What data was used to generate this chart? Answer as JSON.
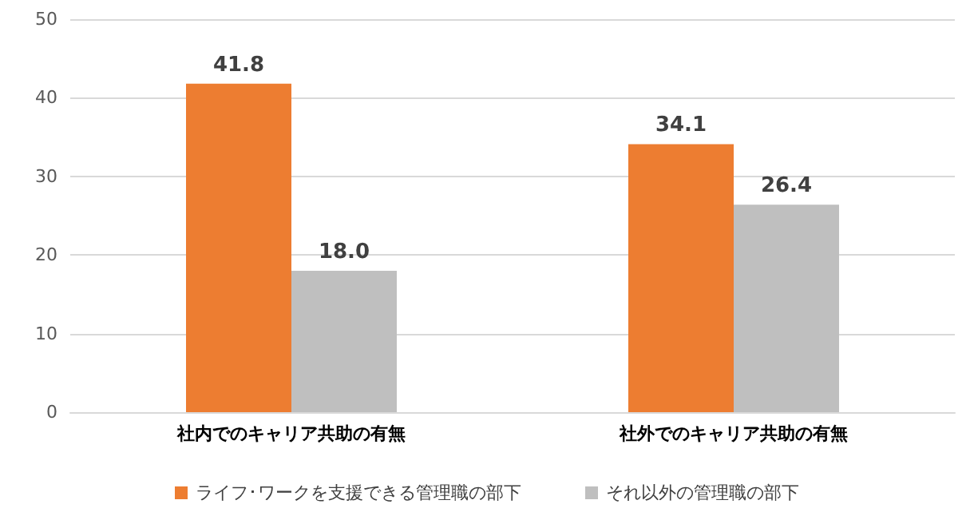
{
  "chart_data": {
    "type": "bar",
    "categories": [
      "社内でのキャリア共助の有無",
      "社外でのキャリア共助の有無"
    ],
    "series": [
      {
        "name": "ライフ･ワークを支援できる管理職の部下",
        "color": "#ed7d31",
        "values": [
          41.8,
          34.1
        ],
        "value_labels": [
          "41.8",
          "34.1"
        ]
      },
      {
        "name": "それ以外の管理職の部下",
        "color": "#bfbfbf",
        "values": [
          18.0,
          26.4
        ],
        "value_labels": [
          "18.0",
          "26.4"
        ]
      }
    ],
    "ylim": [
      0,
      50
    ],
    "yticks": [
      0,
      10,
      20,
      30,
      40,
      50
    ],
    "grid": "y",
    "legend": "bottom"
  }
}
